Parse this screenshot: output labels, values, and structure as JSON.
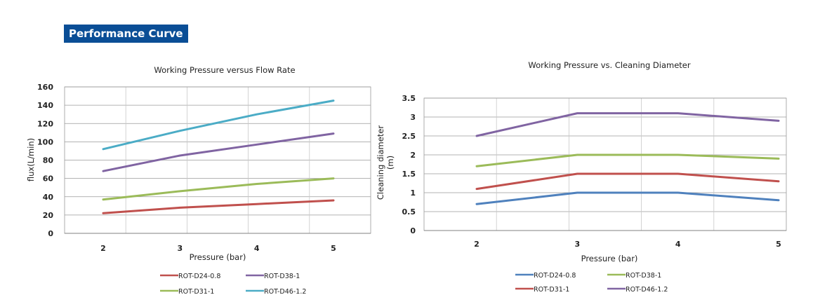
{
  "heading": "Performance Curve",
  "chart_data": [
    {
      "type": "line",
      "title": "Working Pressure versus Flow Rate",
      "xlabel": "Pressure (bar)",
      "ylabel": "flux(L/min)",
      "x": [
        2,
        3,
        4,
        5
      ],
      "xlim": [
        2,
        5
      ],
      "ylim": [
        0,
        160
      ],
      "ytick_step": 20,
      "ytick_decimals": 0,
      "grid": true,
      "legend_position": "bottom",
      "series": [
        {
          "name": "ROT-D24-0.8",
          "color": "#c0504d",
          "values": [
            22,
            28,
            32,
            36
          ]
        },
        {
          "name": "ROT-D38-1",
          "color": "#8064a2",
          "values": [
            68,
            85,
            97,
            109
          ]
        },
        {
          "name": "ROT-D31-1",
          "color": "#9bbb59",
          "values": [
            37,
            46,
            54,
            60
          ]
        },
        {
          "name": "ROT-D46-1.2",
          "color": "#4bacc6",
          "values": [
            92,
            112,
            130,
            145
          ]
        }
      ]
    },
    {
      "type": "line",
      "title": "Working Pressure vs. Cleaning Diameter",
      "xlabel": "Pressure (bar)",
      "ylabel": "Cleaning diameter\n(m)",
      "x": [
        2,
        3,
        4,
        5
      ],
      "xlim": [
        2,
        5
      ],
      "ylim": [
        0,
        3.5
      ],
      "ytick_step": 0.5,
      "ytick_decimals": 1,
      "grid": true,
      "legend_position": "bottom",
      "series": [
        {
          "name": "ROT-D24-0.8",
          "color": "#4f81bd",
          "values": [
            0.7,
            1.0,
            1.0,
            0.8
          ]
        },
        {
          "name": "ROT-D38-1",
          "color": "#9bbb59",
          "values": [
            1.7,
            2.0,
            2.0,
            1.9
          ]
        },
        {
          "name": "ROT-D31-1",
          "color": "#c0504d",
          "values": [
            1.1,
            1.5,
            1.5,
            1.3
          ]
        },
        {
          "name": "ROT-D46-1.2",
          "color": "#8064a2",
          "values": [
            2.5,
            3.1,
            3.1,
            2.9
          ]
        }
      ]
    }
  ]
}
